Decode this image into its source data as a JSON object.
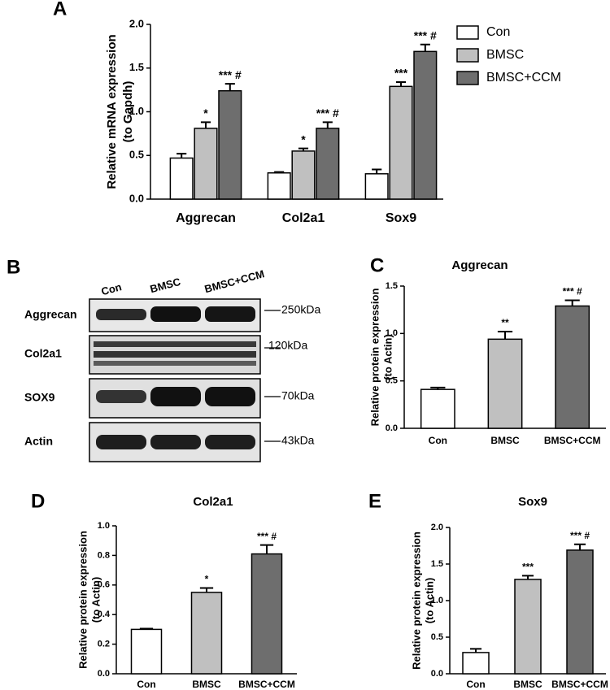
{
  "chart_data": [
    {
      "type": "bar",
      "panel": "A",
      "ylabel": [
        "Relative mRNA expression",
        "(to Gapdh)"
      ],
      "categories": [
        "Aggrecan",
        "Col2a1",
        "Sox9"
      ],
      "series": [
        {
          "name": "Con",
          "color": "#ffffff",
          "values": [
            0.47,
            0.3,
            0.29
          ],
          "errors": [
            0.05,
            0.01,
            0.05
          ]
        },
        {
          "name": "BMSC",
          "color": "#c0c0c0",
          "values": [
            0.81,
            0.55,
            1.29
          ],
          "errors": [
            0.07,
            0.03,
            0.05
          ],
          "marks": [
            "*",
            "*",
            "***"
          ]
        },
        {
          "name": "BMSC+CCM",
          "color": "#6e6e6e",
          "values": [
            1.24,
            0.81,
            1.69
          ],
          "errors": [
            0.08,
            0.07,
            0.08
          ],
          "marks": [
            "*** #",
            "*** #",
            "*** #"
          ]
        }
      ],
      "ylim": [
        0,
        2
      ],
      "yticks": [
        {
          "value": 0,
          "label": "0.0"
        },
        0.5,
        {
          "value": 1,
          "label": "1.0"
        },
        1.5,
        {
          "value": 2,
          "label": "2.0"
        }
      ],
      "legend": "right"
    },
    {
      "type": "bar",
      "panel": "C",
      "title": "Aggrecan",
      "ylabel": [
        "Relative protein expression",
        "(to Actin)"
      ],
      "categories": [
        "Con",
        "BMSC",
        "BMSC+CCM"
      ],
      "values": [
        0.41,
        0.94,
        1.29
      ],
      "errors": [
        0.02,
        0.08,
        0.06
      ],
      "marks": [
        null,
        "**",
        "*** #"
      ],
      "colors": [
        "#ffffff",
        "#c0c0c0",
        "#6e6e6e"
      ],
      "ylim": [
        0,
        1.5
      ],
      "yticks": [
        {
          "value": 0,
          "label": "0.0"
        },
        0.5,
        {
          "value": 1,
          "label": "1.0"
        },
        1.5
      ]
    },
    {
      "type": "bar",
      "panel": "D",
      "title": "Col2a1",
      "ylabel": [
        "Relative protein expression",
        "(to Actin)"
      ],
      "categories": [
        "Con",
        "BMSC",
        "BMSC+CCM"
      ],
      "values": [
        0.3,
        0.55,
        0.81
      ],
      "errors": [
        0.005,
        0.03,
        0.06
      ],
      "marks": [
        null,
        "*",
        "*** #"
      ],
      "colors": [
        "#ffffff",
        "#c0c0c0",
        "#6e6e6e"
      ],
      "ylim": [
        0,
        1
      ],
      "yticks": [
        {
          "value": 0,
          "label": "0.0"
        },
        0.2,
        0.4,
        0.6,
        0.8,
        {
          "value": 1,
          "label": "1.0"
        }
      ]
    },
    {
      "type": "bar",
      "panel": "E",
      "title": "Sox9",
      "ylabel": [
        "Relative protein expression",
        "(to Actin)"
      ],
      "categories": [
        "Con",
        "BMSC",
        "BMSC+CCM"
      ],
      "values": [
        0.29,
        1.29,
        1.69
      ],
      "errors": [
        0.05,
        0.05,
        0.08
      ],
      "marks": [
        null,
        "***",
        "*** #"
      ],
      "colors": [
        "#ffffff",
        "#c0c0c0",
        "#6e6e6e"
      ],
      "ylim": [
        0,
        2
      ],
      "yticks": [
        {
          "value": 0,
          "label": "0.0"
        },
        0.5,
        {
          "value": 1,
          "label": "1.0"
        },
        1.5,
        {
          "value": 2,
          "label": "2.0"
        }
      ]
    }
  ],
  "blot": {
    "panel": "B",
    "lanes": [
      "Con",
      "BMSC",
      "BMSC+CCM"
    ],
    "rows": [
      {
        "name": "Aggrecan",
        "size": "250kDa"
      },
      {
        "name": "Col2a1",
        "size": "120kDa"
      },
      {
        "name": "SOX9",
        "size": "70kDa"
      },
      {
        "name": "Actin",
        "size": "43kDa"
      }
    ]
  }
}
